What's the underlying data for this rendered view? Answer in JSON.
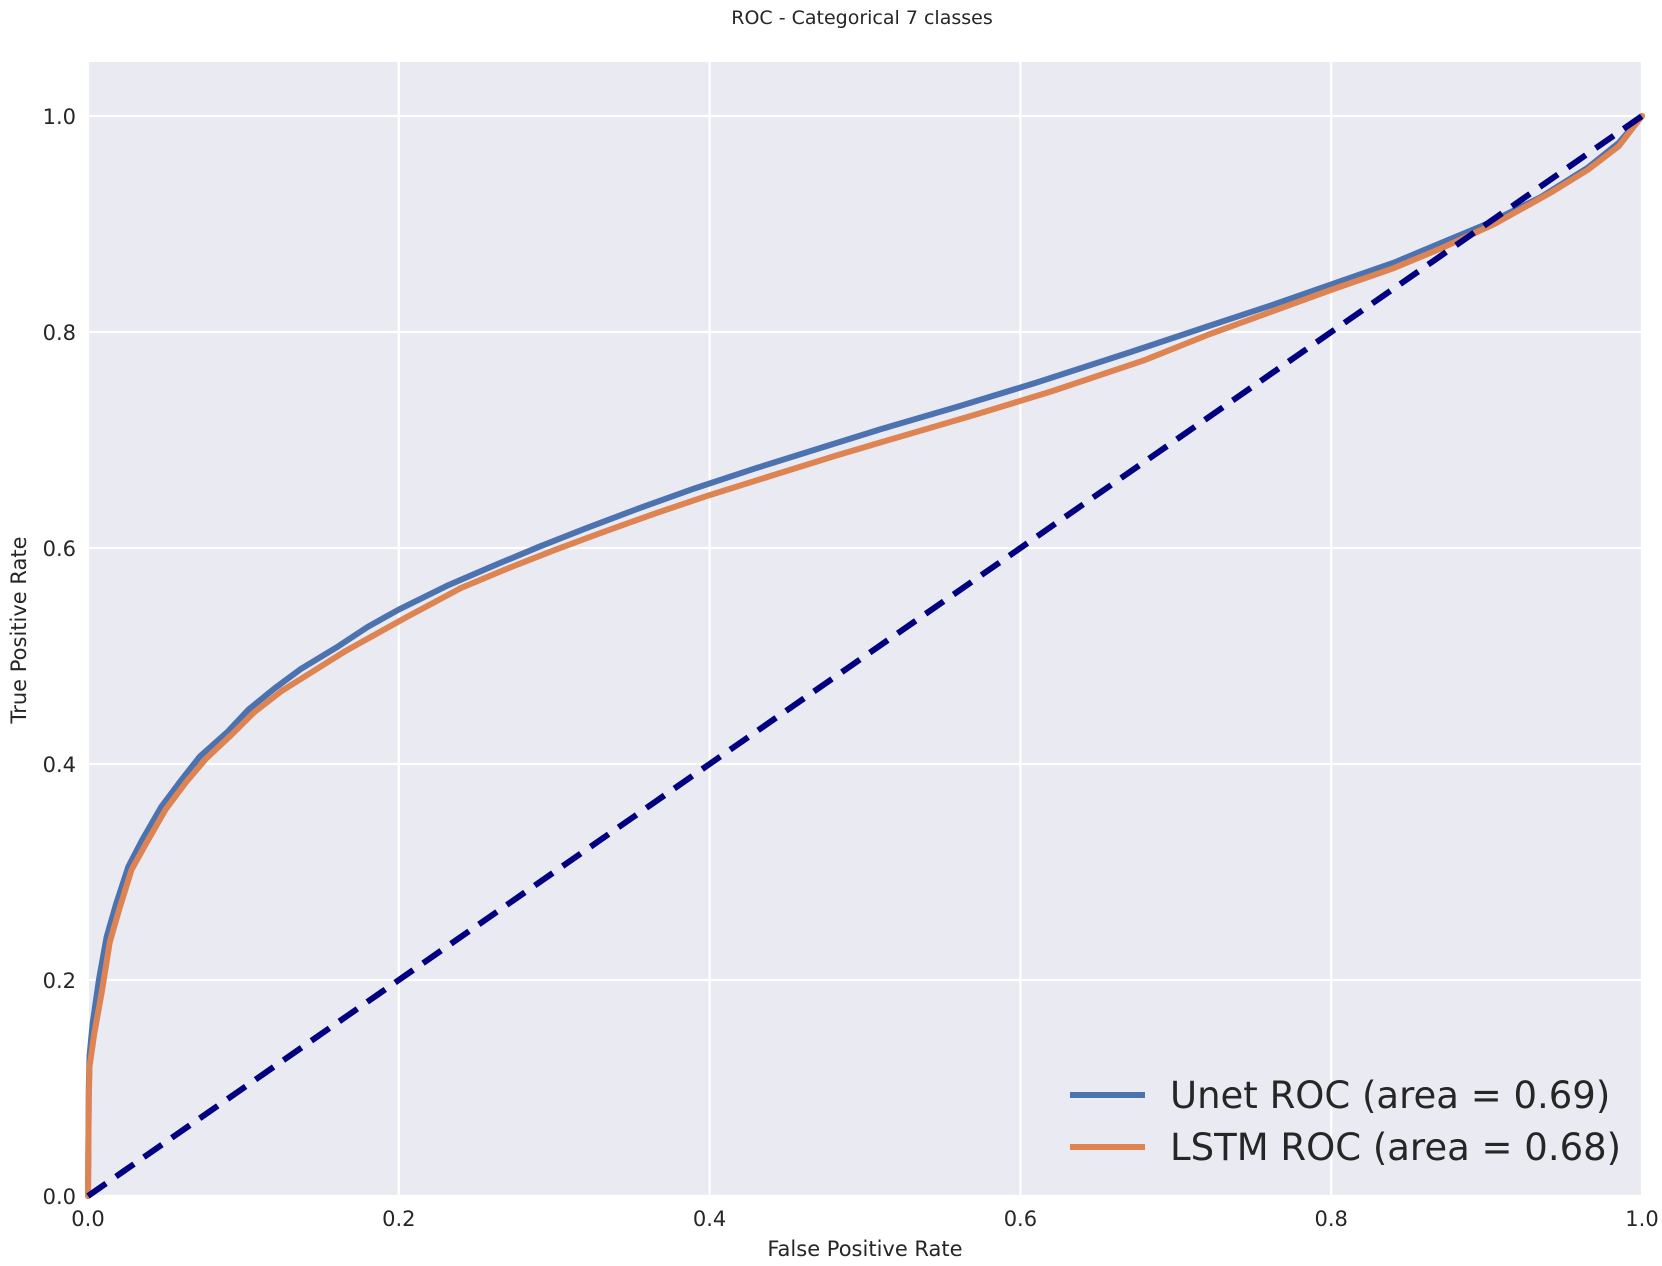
{
  "chart_data": {
    "type": "line",
    "title": "ROC - Categorical 7 classes",
    "xlabel": "False Positive Rate",
    "ylabel": "True Positive Rate",
    "xlim": [
      0.0,
      1.0
    ],
    "ylim": [
      0.0,
      1.05
    ],
    "grid": true,
    "legend_position": "lower-right",
    "x_ticks": [
      "0.0",
      "0.2",
      "0.4",
      "0.6",
      "0.8",
      "1.0"
    ],
    "y_ticks": [
      "0.0",
      "0.2",
      "0.4",
      "0.6",
      "0.8",
      "1.0"
    ],
    "series": [
      {
        "name": "Unet ROC (area = 0.69)",
        "color": "#4c72b0",
        "x": [
          0.0,
          0.0005,
          0.001,
          0.003,
          0.007,
          0.012,
          0.018,
          0.026,
          0.035,
          0.047,
          0.06,
          0.072,
          0.09,
          0.103,
          0.12,
          0.137,
          0.16,
          0.18,
          0.2,
          0.231,
          0.26,
          0.29,
          0.32,
          0.355,
          0.39,
          0.43,
          0.47,
          0.51,
          0.56,
          0.61,
          0.67,
          0.72,
          0.76,
          0.8,
          0.84,
          0.87,
          0.9,
          0.935,
          0.965,
          0.985,
          1.0
        ],
        "y": [
          0.0,
          0.1,
          0.13,
          0.16,
          0.2,
          0.24,
          0.27,
          0.305,
          0.33,
          0.36,
          0.385,
          0.407,
          0.43,
          0.45,
          0.47,
          0.488,
          0.508,
          0.527,
          0.543,
          0.565,
          0.583,
          0.601,
          0.618,
          0.637,
          0.655,
          0.674,
          0.692,
          0.71,
          0.731,
          0.753,
          0.781,
          0.805,
          0.824,
          0.844,
          0.864,
          0.882,
          0.9,
          0.925,
          0.952,
          0.975,
          1.0
        ]
      },
      {
        "name": "LSTM ROC (area = 0.68)",
        "color": "#dd8452",
        "x": [
          0.0,
          0.0005,
          0.001,
          0.004,
          0.009,
          0.014,
          0.02,
          0.028,
          0.038,
          0.05,
          0.063,
          0.076,
          0.093,
          0.107,
          0.125,
          0.145,
          0.165,
          0.185,
          0.205,
          0.24,
          0.27,
          0.3,
          0.33,
          0.365,
          0.4,
          0.44,
          0.48,
          0.52,
          0.57,
          0.62,
          0.68,
          0.72,
          0.76,
          0.8,
          0.84,
          0.87,
          0.905,
          0.94,
          0.965,
          0.985,
          1.0
        ],
        "y": [
          0.0,
          0.09,
          0.12,
          0.15,
          0.19,
          0.235,
          0.265,
          0.302,
          0.328,
          0.358,
          0.383,
          0.405,
          0.428,
          0.448,
          0.468,
          0.486,
          0.504,
          0.52,
          0.536,
          0.563,
          0.581,
          0.598,
          0.614,
          0.632,
          0.649,
          0.667,
          0.685,
          0.702,
          0.723,
          0.745,
          0.774,
          0.797,
          0.818,
          0.839,
          0.859,
          0.877,
          0.9,
          0.928,
          0.95,
          0.972,
          1.0
        ]
      }
    ],
    "reference_line": {
      "color": "#000080",
      "x": [
        0.0,
        1.0
      ],
      "y": [
        0.0,
        1.0
      ]
    }
  }
}
